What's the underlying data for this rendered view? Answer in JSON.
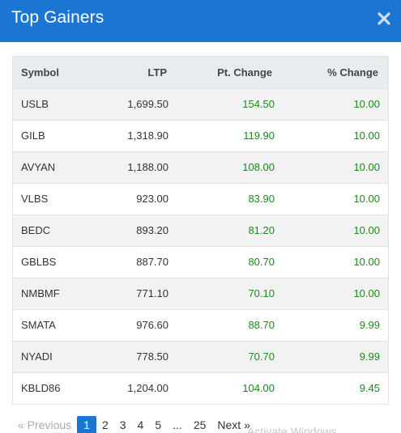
{
  "modal": {
    "title": "Top Gainers"
  },
  "table": {
    "headers": {
      "symbol": "Symbol",
      "ltp": "LTP",
      "pt_change": "Pt. Change",
      "pct_change": "% Change"
    },
    "rows": [
      {
        "symbol": "USLB",
        "ltp": "1,699.50",
        "pt_change": "154.50",
        "pct_change": "10.00"
      },
      {
        "symbol": "GILB",
        "ltp": "1,318.90",
        "pt_change": "119.90",
        "pct_change": "10.00"
      },
      {
        "symbol": "AVYAN",
        "ltp": "1,188.00",
        "pt_change": "108.00",
        "pct_change": "10.00"
      },
      {
        "symbol": "VLBS",
        "ltp": "923.00",
        "pt_change": "83.90",
        "pct_change": "10.00"
      },
      {
        "symbol": "BEDC",
        "ltp": "893.20",
        "pt_change": "81.20",
        "pct_change": "10.00"
      },
      {
        "symbol": "GBLBS",
        "ltp": "887.70",
        "pt_change": "80.70",
        "pct_change": "10.00"
      },
      {
        "symbol": "NMBMF",
        "ltp": "771.10",
        "pt_change": "70.10",
        "pct_change": "10.00"
      },
      {
        "symbol": "SMATA",
        "ltp": "976.60",
        "pt_change": "88.70",
        "pct_change": "9.99"
      },
      {
        "symbol": "NYADI",
        "ltp": "778.50",
        "pt_change": "70.70",
        "pct_change": "9.99"
      },
      {
        "symbol": "KBLD86",
        "ltp": "1,204.00",
        "pt_change": "104.00",
        "pct_change": "9.45"
      }
    ]
  },
  "pagination": {
    "previous": "« Previous",
    "pages": [
      "1",
      "2",
      "3",
      "4",
      "5"
    ],
    "active_page": "1",
    "ellipsis": "...",
    "last_page": "25",
    "next": "Next »"
  },
  "watermark": {
    "text": "Activate Windows"
  },
  "colors": {
    "header_bg": "#1a76d2",
    "positive": "#1a8a1a",
    "active_page_bg": "#1a76d2"
  },
  "icons": {
    "close": "close-icon"
  }
}
